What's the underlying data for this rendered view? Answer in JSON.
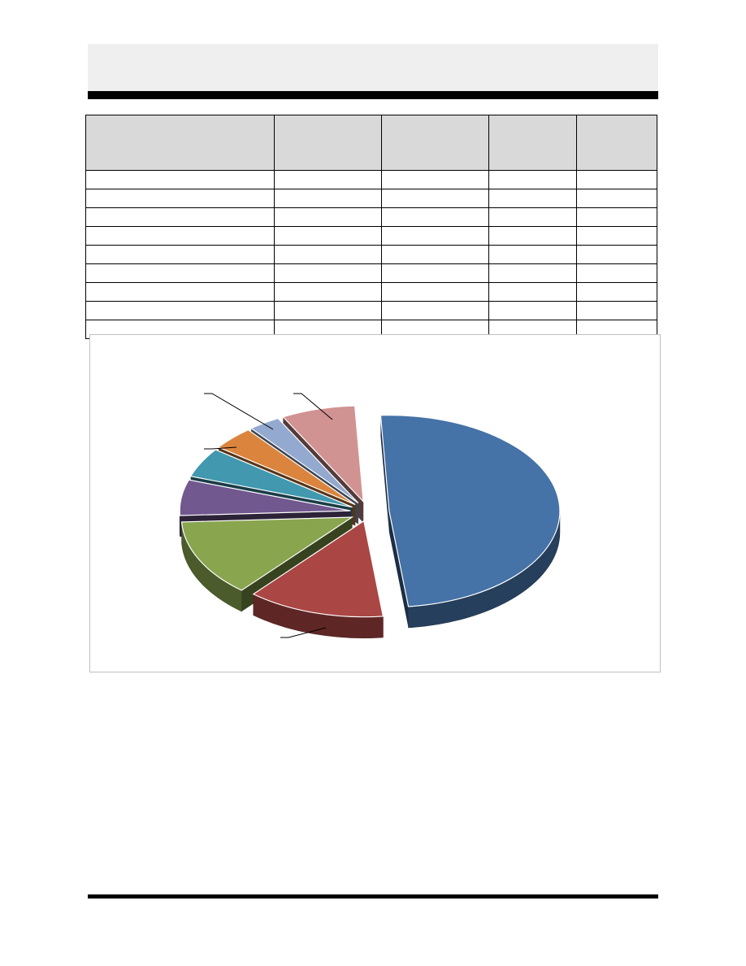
{
  "table": {
    "columns": [
      "",
      "",
      "",
      "",
      ""
    ],
    "rows": [
      [
        "",
        "",
        "",
        "",
        ""
      ],
      [
        "",
        "",
        "",
        "",
        ""
      ],
      [
        "",
        "",
        "",
        "",
        ""
      ],
      [
        "",
        "",
        "",
        "",
        ""
      ],
      [
        "",
        "",
        "",
        "",
        ""
      ],
      [
        "",
        "",
        "",
        "",
        ""
      ],
      [
        "",
        "",
        "",
        "",
        ""
      ],
      [
        "",
        "",
        "",
        "",
        ""
      ],
      [
        "",
        "",
        "",
        "",
        ""
      ]
    ]
  },
  "chart_data": {
    "type": "pie",
    "style": "3d-exploded",
    "categories": [
      "",
      "",
      "",
      "",
      "",
      "",
      "",
      ""
    ],
    "values": [
      49,
      13,
      13,
      6,
      5,
      4,
      3,
      7
    ],
    "colors": [
      "#4572a7",
      "#aa4643",
      "#89a54e",
      "#71588f",
      "#4198af",
      "#db843d",
      "#93a9cf",
      "#d19392"
    ],
    "legend": "none"
  }
}
